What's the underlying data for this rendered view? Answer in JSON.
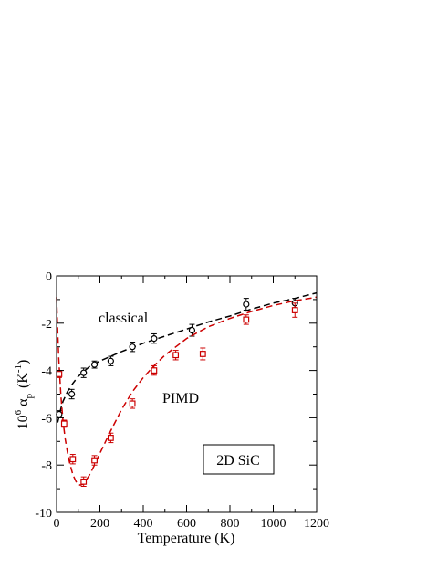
{
  "chart_data": {
    "type": "scatter",
    "xlabel": "Temperature  (K)",
    "ylabel": {
      "prefix": "10",
      "exponent": "6",
      "symbol": "α",
      "subscript": "p",
      "unit_open": "(K",
      "unit_exponent": "-1",
      "unit_close": ")"
    },
    "xlim": [
      0,
      1200
    ],
    "ylim": [
      -10,
      0
    ],
    "xticks": [
      "0",
      "200",
      "400",
      "600",
      "800",
      "1000",
      "1200"
    ],
    "yticks": [
      "0",
      "-2",
      "-4",
      "-6",
      "-8",
      "-10"
    ],
    "grid": false,
    "annotations": {
      "classical": "classical",
      "pimd": "PIMD",
      "box": "2D SiC"
    },
    "series": [
      {
        "name": "classical",
        "color": "#000000",
        "marker": "circle",
        "points": [
          {
            "x": 12,
            "y": -5.85,
            "err": 0.15
          },
          {
            "x": 70,
            "y": -5.0,
            "err": 0.2
          },
          {
            "x": 125,
            "y": -4.1,
            "err": 0.2
          },
          {
            "x": 175,
            "y": -3.75,
            "err": 0.15
          },
          {
            "x": 250,
            "y": -3.6,
            "err": 0.2
          },
          {
            "x": 350,
            "y": -3.0,
            "err": 0.2
          },
          {
            "x": 450,
            "y": -2.65,
            "err": 0.2
          },
          {
            "x": 625,
            "y": -2.3,
            "err": 0.25
          },
          {
            "x": 875,
            "y": -1.2,
            "err": 0.25
          },
          {
            "x": 1100,
            "y": -1.15,
            "err": 0.2
          }
        ],
        "fit": {
          "color": "#000000",
          "x": [
            5,
            10,
            20,
            30,
            50,
            75,
            100,
            150,
            200,
            300,
            400,
            500,
            600,
            700,
            800,
            900,
            1000,
            1100,
            1200
          ],
          "y": [
            -6.2,
            -6.0,
            -5.6,
            -5.3,
            -4.9,
            -4.55,
            -4.25,
            -3.85,
            -3.6,
            -3.2,
            -2.85,
            -2.55,
            -2.25,
            -1.95,
            -1.7,
            -1.4,
            -1.15,
            -0.95,
            -0.72
          ]
        }
      },
      {
        "name": "PIMD",
        "color": "#cc0000",
        "marker": "square",
        "points": [
          {
            "x": 12,
            "y": -4.15,
            "err": 0.15
          },
          {
            "x": 35,
            "y": -6.25,
            "err": 0.15
          },
          {
            "x": 75,
            "y": -7.75,
            "err": 0.2
          },
          {
            "x": 125,
            "y": -8.7,
            "err": 0.2
          },
          {
            "x": 175,
            "y": -7.8,
            "err": 0.2
          },
          {
            "x": 250,
            "y": -6.85,
            "err": 0.2
          },
          {
            "x": 350,
            "y": -5.4,
            "err": 0.2
          },
          {
            "x": 450,
            "y": -4.0,
            "err": 0.2
          },
          {
            "x": 550,
            "y": -3.35,
            "err": 0.2
          },
          {
            "x": 675,
            "y": -3.3,
            "err": 0.25
          },
          {
            "x": 875,
            "y": -1.85,
            "err": 0.2
          },
          {
            "x": 1100,
            "y": -1.45,
            "err": 0.3
          }
        ],
        "fit": {
          "color": "#cc0000",
          "x": [
            0,
            5,
            10,
            20,
            30,
            40,
            50,
            60,
            75,
            90,
            100,
            110,
            120,
            130,
            150,
            175,
            200,
            250,
            300,
            350,
            400,
            450,
            500,
            600,
            700,
            800,
            900,
            1000,
            1100,
            1200
          ],
          "y": [
            -0.9,
            -2.3,
            -3.5,
            -5.1,
            -6.15,
            -6.9,
            -7.45,
            -7.9,
            -8.4,
            -8.7,
            -8.82,
            -8.85,
            -8.82,
            -8.72,
            -8.45,
            -8.0,
            -7.5,
            -6.55,
            -5.65,
            -4.9,
            -4.3,
            -3.8,
            -3.35,
            -2.65,
            -2.15,
            -1.8,
            -1.5,
            -1.25,
            -1.05,
            -0.9
          ]
        }
      }
    ]
  }
}
